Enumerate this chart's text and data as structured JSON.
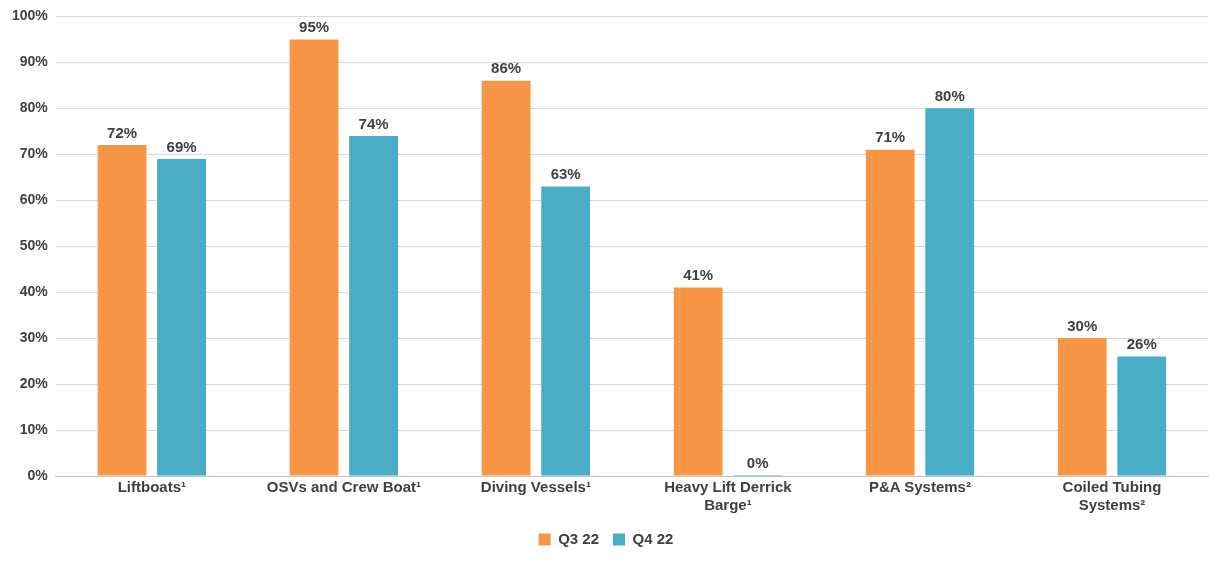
{
  "chart_data": {
    "type": "bar",
    "categories": [
      "Liftboats¹",
      "OSVs and Crew Boat¹",
      "Diving Vessels¹",
      "Heavy Lift Derrick Barge¹",
      "P&A Systems²",
      "Coiled Tubing Systems²"
    ],
    "series": [
      {
        "name": "Q3 22",
        "color": "#f79646",
        "values": [
          72,
          95,
          86,
          41,
          71,
          30
        ],
        "value_labels": [
          "72%",
          "95%",
          "86%",
          "41%",
          "71%",
          "30%"
        ]
      },
      {
        "name": "Q4 22",
        "color": "#4bacc6",
        "values": [
          69,
          74,
          63,
          0,
          80,
          26
        ],
        "value_labels": [
          "69%",
          "74%",
          "63%",
          "0%",
          "80%",
          "26%"
        ]
      }
    ],
    "ylim": [
      0,
      100
    ],
    "yticks": [
      {
        "value": 0,
        "label": "0%"
      },
      {
        "value": 10,
        "label": "10%"
      },
      {
        "value": 20,
        "label": "20%"
      },
      {
        "value": 30,
        "label": "30%"
      },
      {
        "value": 40,
        "label": "40%"
      },
      {
        "value": 50,
        "label": "50%"
      },
      {
        "value": 60,
        "label": "60%"
      },
      {
        "value": 70,
        "label": "70%"
      },
      {
        "value": 80,
        "label": "80%"
      },
      {
        "value": 90,
        "label": "90%"
      },
      {
        "value": 100,
        "label": "100%"
      }
    ],
    "grid": "y",
    "legend": "bottom"
  }
}
